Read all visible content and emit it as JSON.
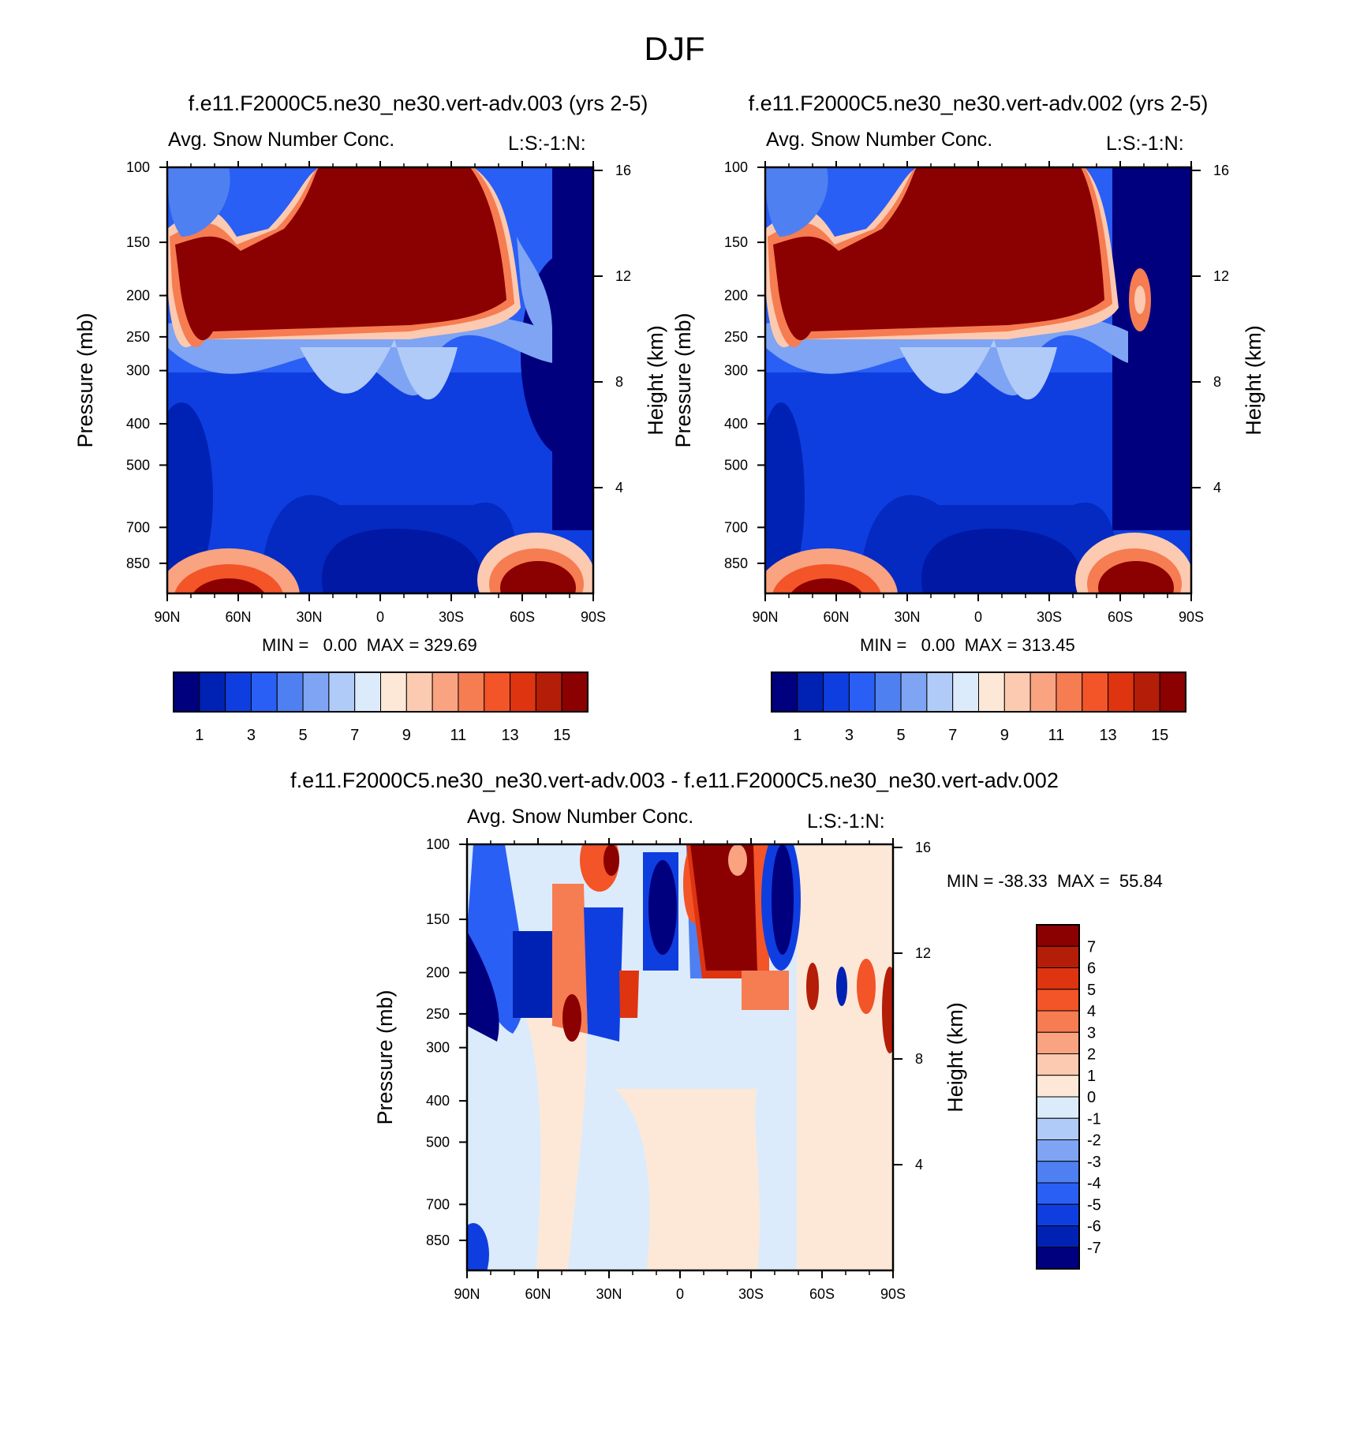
{
  "page_title": "DJF",
  "panels": [
    {
      "title": "f.e11.F2000C5.ne30_ne30.vert-adv.003 (yrs 2-5)",
      "subtitle": "Avg. Snow Number Conc.",
      "code": "L:S:-1:N:",
      "minmax": "MIN =   0.00  MAX = 329.69"
    },
    {
      "title": "f.e11.F2000C5.ne30_ne30.vert-adv.002 (yrs 2-5)",
      "subtitle": "Avg. Snow Number Conc.",
      "code": "L:S:-1:N:",
      "minmax": "MIN =   0.00  MAX = 313.45"
    },
    {
      "title": "f.e11.F2000C5.ne30_ne30.vert-adv.003 - f.e11.F2000C5.ne30_ne30.vert-adv.002",
      "subtitle": "Avg. Snow Number Conc.",
      "code": "L:S:-1:N:",
      "minmax": "MIN = -38.33  MAX =  55.84"
    }
  ],
  "colors": {
    "abs_scale": [
      "#00007f",
      "#0022b4",
      "#0f3ee0",
      "#2a5ff5",
      "#4f80f2",
      "#7ea4f3",
      "#b0cbf8",
      "#dcebfb",
      "#fde8d7",
      "#fccab0",
      "#f9a381",
      "#f67c52",
      "#f35428",
      "#de3410",
      "#b41d08",
      "#8b0000"
    ],
    "diff_scale": [
      "#00007f",
      "#0022b4",
      "#0f3ee0",
      "#2a5ff5",
      "#4f80f2",
      "#7ea4f3",
      "#b0cbf8",
      "#dcebfb",
      "#fde8d7",
      "#fccab0",
      "#f9a381",
      "#f67c52",
      "#f35428",
      "#de3410",
      "#b41d08",
      "#8b0000"
    ]
  },
  "chart_data": [
    {
      "type": "heatmap",
      "variable": "Avg. Snow Number Conc.",
      "case": "f.e11.F2000C5.ne30_ne30.vert-adv.003 (yrs 2-5)",
      "x_ticks": [
        "90N",
        "60N",
        "30N",
        "0",
        "30S",
        "60S",
        "90S"
      ],
      "x_range": [
        90,
        -90
      ],
      "y_ticks": [
        100,
        150,
        200,
        250,
        300,
        400,
        500,
        700,
        850
      ],
      "y_range": [
        100,
        1000
      ],
      "ylabel": "Pressure (mb)",
      "right_ticks": [
        16,
        12,
        8,
        4
      ],
      "right_label": "Height (km)",
      "colorbar_labels": [
        "1",
        "3",
        "5",
        "7",
        "9",
        "11",
        "13",
        "15"
      ],
      "min": 0.0,
      "max": 329.69
    },
    {
      "type": "heatmap",
      "variable": "Avg. Snow Number Conc.",
      "case": "f.e11.F2000C5.ne30_ne30.vert-adv.002 (yrs 2-5)",
      "x_ticks": [
        "90N",
        "60N",
        "30N",
        "0",
        "30S",
        "60S",
        "90S"
      ],
      "x_range": [
        90,
        -90
      ],
      "y_ticks": [
        100,
        150,
        200,
        250,
        300,
        400,
        500,
        700,
        850
      ],
      "y_range": [
        100,
        1000
      ],
      "ylabel": "Pressure (mb)",
      "right_ticks": [
        16,
        12,
        8,
        4
      ],
      "right_label": "Height (km)",
      "colorbar_labels": [
        "1",
        "3",
        "5",
        "7",
        "9",
        "11",
        "13",
        "15"
      ],
      "min": 0.0,
      "max": 313.45
    },
    {
      "type": "heatmap",
      "variable": "Avg. Snow Number Conc.",
      "case": "f.e11.F2000C5.ne30_ne30.vert-adv.003 - f.e11.F2000C5.ne30_ne30.vert-adv.002",
      "x_ticks": [
        "90N",
        "60N",
        "30N",
        "0",
        "30S",
        "60S",
        "90S"
      ],
      "x_range": [
        90,
        -90
      ],
      "y_ticks": [
        100,
        150,
        200,
        250,
        300,
        400,
        500,
        700,
        850
      ],
      "y_range": [
        100,
        1000
      ],
      "ylabel": "Pressure (mb)",
      "right_ticks": [
        16,
        12,
        8,
        4
      ],
      "right_label": "Height (km)",
      "colorbar_labels": [
        "7",
        "6",
        "5",
        "4",
        "3",
        "2",
        "1",
        "0",
        "-1",
        "-2",
        "-3",
        "-4",
        "-5",
        "-6",
        "-7"
      ],
      "min": -38.33,
      "max": 55.84
    }
  ]
}
